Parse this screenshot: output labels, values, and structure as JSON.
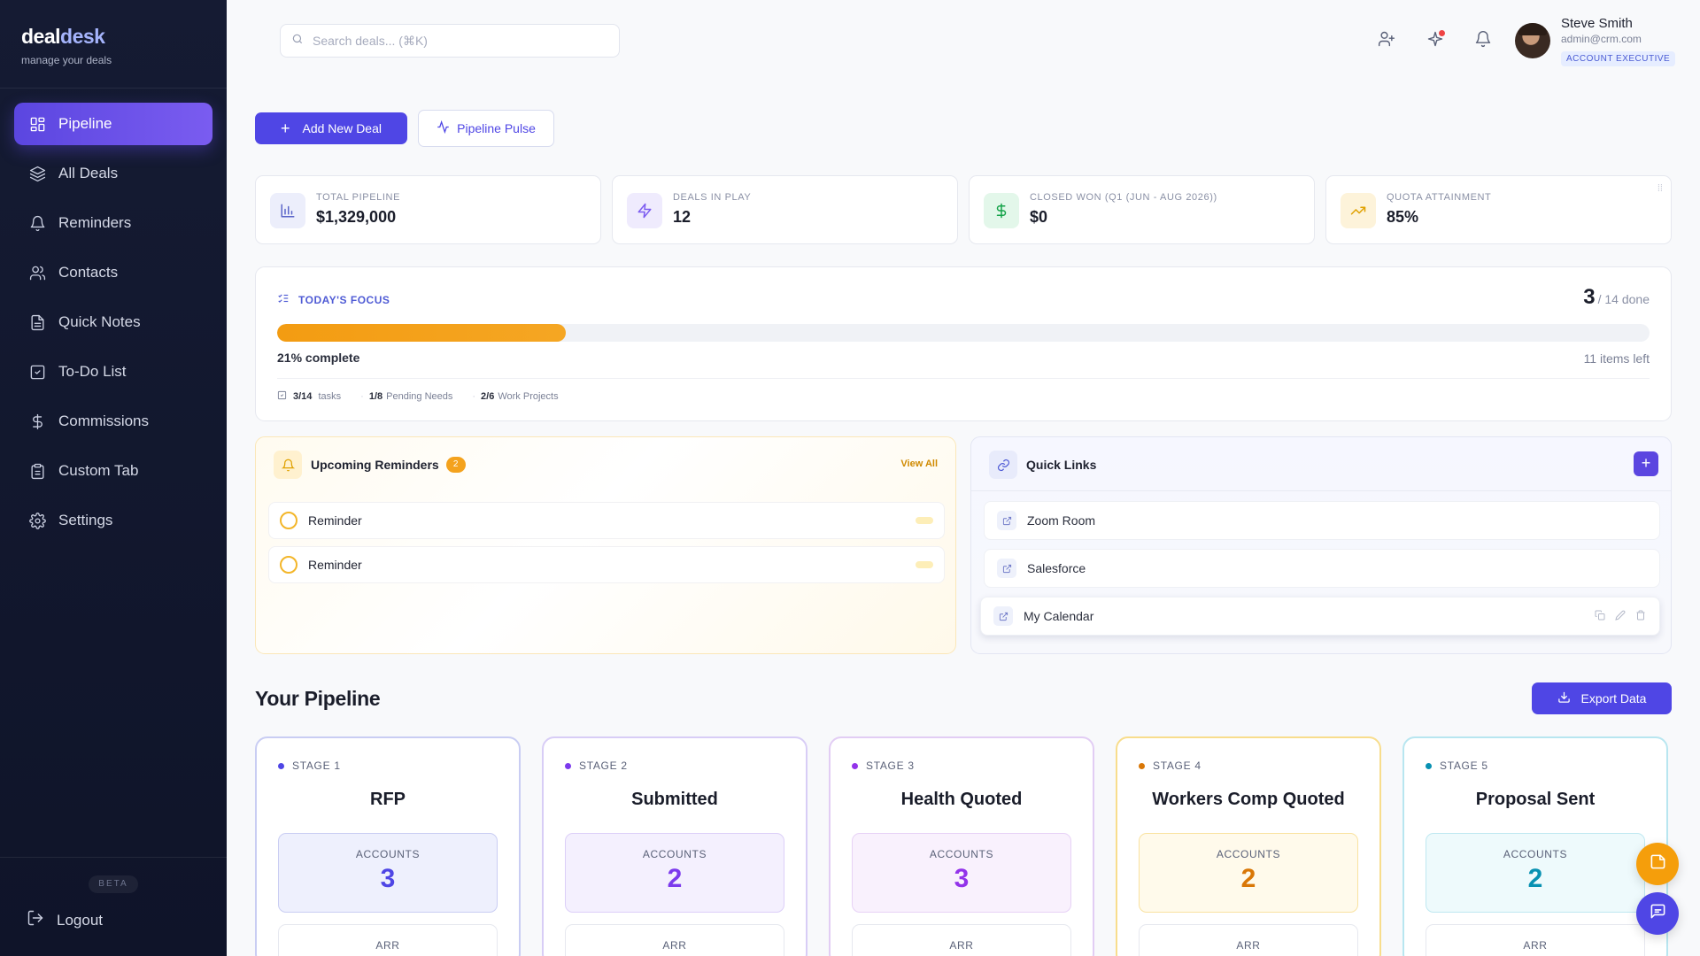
{
  "brand": {
    "name_part1": "deal",
    "name_part2": "desk",
    "tagline": "manage your deals"
  },
  "sidebar": {
    "items": [
      {
        "label": "Pipeline",
        "icon": "grid-icon",
        "active": true
      },
      {
        "label": "All Deals",
        "icon": "layers-icon"
      },
      {
        "label": "Reminders",
        "icon": "bell-icon"
      },
      {
        "label": "Contacts",
        "icon": "users-icon"
      },
      {
        "label": "Quick Notes",
        "icon": "file-text-icon"
      },
      {
        "label": "To-Do List",
        "icon": "check-square-icon"
      },
      {
        "label": "Commissions",
        "icon": "dollar-icon"
      },
      {
        "label": "Custom Tab",
        "icon": "clipboard-icon"
      },
      {
        "label": "Settings",
        "icon": "gear-icon"
      }
    ],
    "beta_label": "BETA",
    "logout_label": "Logout"
  },
  "header": {
    "search_placeholder": "Search deals... (⌘K)",
    "user": {
      "name": "Steve Smith",
      "email": "admin@crm.com",
      "role": "ACCOUNT EXECUTIVE"
    }
  },
  "actions": {
    "add_deal": "Add New Deal",
    "pipeline_pulse": "Pipeline Pulse"
  },
  "stats": [
    {
      "label": "TOTAL PIPELINE",
      "value": "$1,329,000",
      "icon": "bar-chart-icon",
      "color": "#5b65c9"
    },
    {
      "label": "DEALS IN PLAY",
      "value": "12",
      "icon": "zap-icon",
      "color": "#7c5cf0"
    },
    {
      "label": "CLOSED WON (Q1 (JUN - AUG 2026))",
      "value": "$0",
      "icon": "dollar-icon",
      "color": "#16a34a"
    },
    {
      "label": "QUOTA ATTAINMENT",
      "value": "85%",
      "icon": "trending-up-icon",
      "color": "#e0a100"
    }
  ],
  "focus": {
    "title": "TODAY'S FOCUS",
    "done": "3",
    "total": "/ 14 done",
    "progress": 0.21,
    "pct_label": "21% complete",
    "left_label": "11 items left",
    "meta": [
      {
        "count": "3/14",
        "label": "tasks"
      },
      {
        "count": "1/8",
        "label": "Pending Needs"
      },
      {
        "count": "2/6",
        "label": "Work Projects"
      }
    ]
  },
  "reminders": {
    "title": "Upcoming Reminders",
    "count": "2",
    "view_all": "View All",
    "items": [
      {
        "label": "Reminder"
      },
      {
        "label": "Reminder"
      }
    ]
  },
  "quick_links": {
    "title": "Quick Links",
    "add": "+",
    "items": [
      {
        "label": "Zoom Room"
      },
      {
        "label": "Salesforce"
      },
      {
        "label": "My Calendar"
      }
    ]
  },
  "pipeline": {
    "title": "Your Pipeline",
    "export_label": "Export Data",
    "stages": [
      {
        "stage": "STAGE 1",
        "name": "RFP",
        "accounts_label": "ACCOUNTS",
        "accounts": "3",
        "arr_label": "ARR",
        "color": "#4f46e5"
      },
      {
        "stage": "STAGE 2",
        "name": "Submitted",
        "accounts_label": "ACCOUNTS",
        "accounts": "2",
        "arr_label": "ARR",
        "color": "#7c3aed"
      },
      {
        "stage": "STAGE 3",
        "name": "Health Quoted",
        "accounts_label": "ACCOUNTS",
        "accounts": "3",
        "arr_label": "ARR",
        "color": "#9333ea"
      },
      {
        "stage": "STAGE 4",
        "name": "Workers Comp Quoted",
        "accounts_label": "ACCOUNTS",
        "accounts": "2",
        "arr_label": "ARR",
        "color": "#d97706"
      },
      {
        "stage": "STAGE 5",
        "name": "Proposal Sent",
        "accounts_label": "ACCOUNTS",
        "accounts": "2",
        "arr_label": "ARR",
        "color": "#0891b2"
      }
    ]
  }
}
